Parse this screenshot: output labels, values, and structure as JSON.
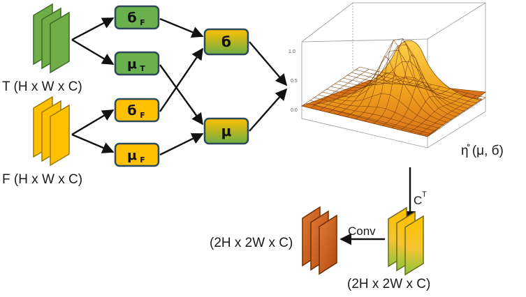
{
  "inputs": {
    "t_label": "T (H x W x C)",
    "f_label": "F (H x W x C)"
  },
  "boxes": {
    "sigma_top": {
      "main": "б",
      "sub": "F"
    },
    "mu_top": {
      "main": "μ",
      "sub": "T"
    },
    "sigma_bottom": {
      "main": "б",
      "sub": "F"
    },
    "mu_bottom": {
      "main": "μ",
      "sub": "F"
    },
    "sigma_out": {
      "main": "б"
    },
    "mu_out": {
      "main": "μ"
    }
  },
  "surface": {
    "axis_ticks": [
      "1.0",
      "0.5",
      "0.0"
    ],
    "label": "η̊ (μ, б)"
  },
  "arrows": {
    "transpose_label": "C",
    "transpose_sup": "T",
    "conv_label": "Conv"
  },
  "outputs": {
    "input_label": "(2H x 2W x C)",
    "output_label": "(2H x 2W x C)"
  },
  "colors": {
    "green": "#6ab04c",
    "yellow": "#ffc000",
    "orange": "#c55a11",
    "box_border": "#2e4a5a"
  }
}
